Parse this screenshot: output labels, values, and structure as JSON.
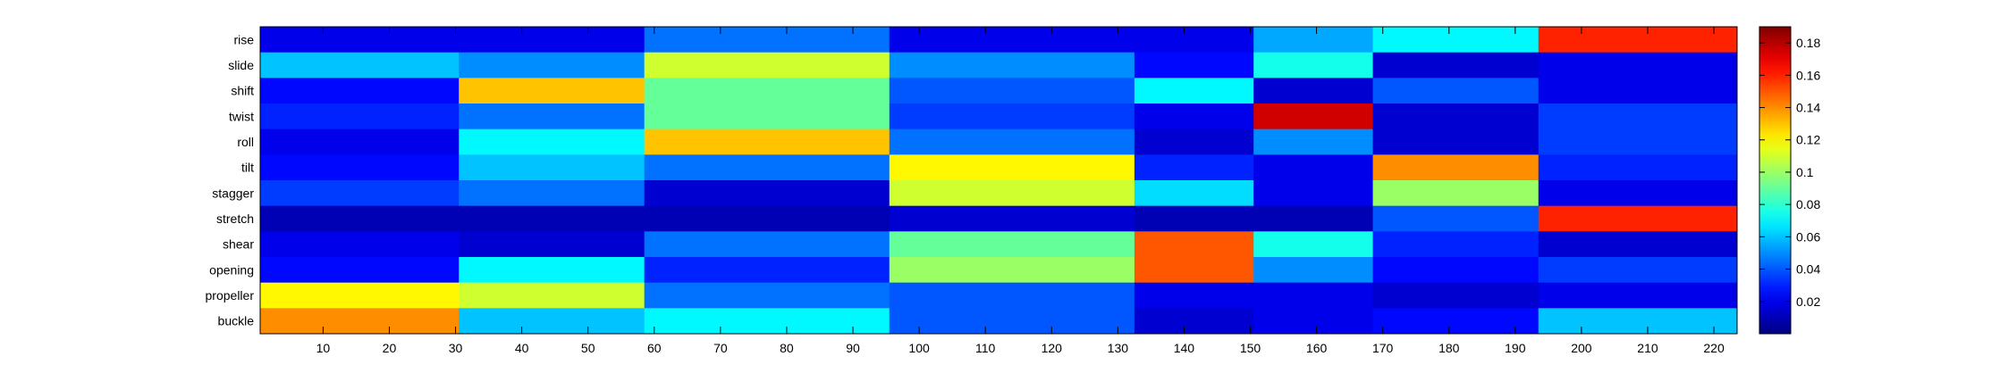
{
  "chart_data": {
    "type": "heatmap",
    "title": "",
    "xlabel": "",
    "ylabel": "",
    "rows": [
      "rise",
      "slide",
      "shift",
      "twist",
      "roll",
      "tilt",
      "stagger",
      "stretch",
      "shear",
      "opening",
      "propeller",
      "buckle"
    ],
    "x_range": [
      1,
      223
    ],
    "x_ticks": [
      10,
      20,
      30,
      40,
      50,
      60,
      70,
      80,
      90,
      100,
      110,
      120,
      130,
      140,
      150,
      160,
      170,
      180,
      190,
      200,
      210,
      220
    ],
    "x_tick_labels": [
      "10",
      "20",
      "30",
      "40",
      "50",
      "60",
      "70",
      "80",
      "90",
      "100",
      "110",
      "120",
      "130",
      "140",
      "150",
      "160",
      "170",
      "180",
      "190",
      "200",
      "210",
      "220"
    ],
    "colorbar": {
      "colormap": "jet",
      "range": [
        0.0,
        0.19
      ],
      "ticks": [
        0.02,
        0.04,
        0.06,
        0.08,
        0.1,
        0.12,
        0.14,
        0.16,
        0.18
      ],
      "tick_labels": [
        "0.02",
        "0.04",
        "0.06",
        "0.08",
        "0.1",
        "0.12",
        "0.14",
        "0.16",
        "0.18"
      ]
    },
    "segments": [
      {
        "x": [
          1,
          30
        ],
        "values": {
          "rise": 0.02,
          "slide": 0.06,
          "shift": 0.025,
          "twist": 0.03,
          "roll": 0.02,
          "tilt": 0.025,
          "stagger": 0.035,
          "stretch": 0.01,
          "shear": 0.02,
          "opening": 0.025,
          "propeller": 0.12,
          "buckle": 0.14
        }
      },
      {
        "x": [
          31,
          58
        ],
        "values": {
          "rise": 0.02,
          "slide": 0.05,
          "shift": 0.13,
          "twist": 0.045,
          "roll": 0.07,
          "tilt": 0.06,
          "stagger": 0.045,
          "stretch": 0.01,
          "shear": 0.015,
          "opening": 0.07,
          "propeller": 0.11,
          "buckle": 0.06
        }
      },
      {
        "x": [
          59,
          95
        ],
        "values": {
          "rise": 0.045,
          "slide": 0.11,
          "shift": 0.09,
          "twist": 0.09,
          "roll": 0.13,
          "tilt": 0.045,
          "stagger": 0.015,
          "stretch": 0.01,
          "shear": 0.045,
          "opening": 0.03,
          "propeller": 0.045,
          "buckle": 0.07
        }
      },
      {
        "x": [
          96,
          132
        ],
        "values": {
          "rise": 0.02,
          "slide": 0.05,
          "shift": 0.04,
          "twist": 0.035,
          "roll": 0.045,
          "tilt": 0.12,
          "stagger": 0.11,
          "stretch": 0.015,
          "shear": 0.09,
          "opening": 0.1,
          "propeller": 0.04,
          "buckle": 0.04
        }
      },
      {
        "x": [
          133,
          150
        ],
        "values": {
          "rise": 0.02,
          "slide": 0.025,
          "shift": 0.07,
          "twist": 0.02,
          "roll": 0.015,
          "tilt": 0.03,
          "stagger": 0.065,
          "stretch": 0.01,
          "shear": 0.15,
          "opening": 0.15,
          "propeller": 0.02,
          "buckle": 0.015
        }
      },
      {
        "x": [
          151,
          168
        ],
        "values": {
          "rise": 0.055,
          "slide": 0.075,
          "shift": 0.015,
          "twist": 0.175,
          "roll": 0.05,
          "tilt": 0.02,
          "stagger": 0.02,
          "stretch": 0.01,
          "shear": 0.075,
          "opening": 0.05,
          "propeller": 0.02,
          "buckle": 0.02
        }
      },
      {
        "x": [
          169,
          193
        ],
        "values": {
          "rise": 0.07,
          "slide": 0.015,
          "shift": 0.04,
          "twist": 0.015,
          "roll": 0.015,
          "tilt": 0.14,
          "stagger": 0.1,
          "stretch": 0.04,
          "shear": 0.03,
          "opening": 0.025,
          "propeller": 0.015,
          "buckle": 0.025
        }
      },
      {
        "x": [
          194,
          223
        ],
        "values": {
          "rise": 0.16,
          "slide": 0.02,
          "shift": 0.02,
          "twist": 0.035,
          "roll": 0.035,
          "tilt": 0.03,
          "stagger": 0.02,
          "stretch": 0.16,
          "shear": 0.015,
          "opening": 0.035,
          "propeller": 0.02,
          "buckle": 0.06
        }
      }
    ],
    "grid": false,
    "legend": "colorbar-right"
  }
}
